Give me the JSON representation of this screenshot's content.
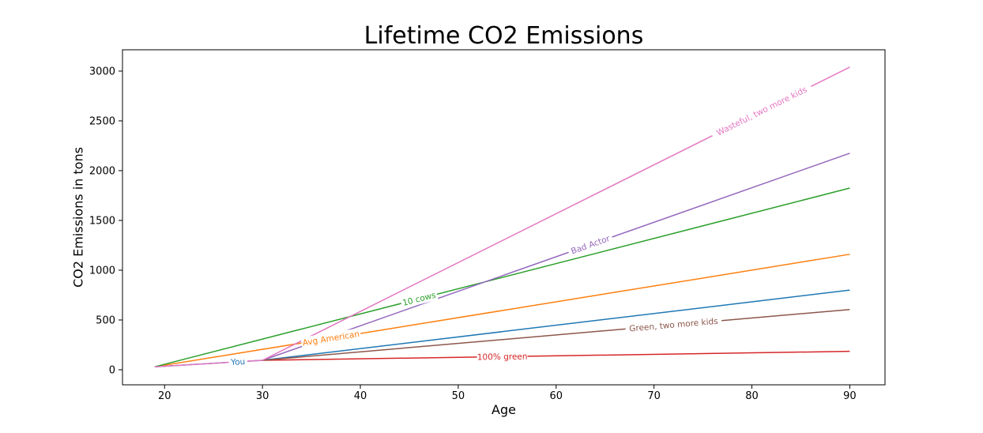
{
  "chart_data": {
    "type": "line",
    "title": "Lifetime CO2 Emissions",
    "xlabel": "Age",
    "ylabel": "CO2 Emissions in tons",
    "xlim": [
      15.7,
      93.6
    ],
    "ylim": [
      -151,
      3214
    ],
    "xticks": [
      20,
      30,
      40,
      50,
      60,
      70,
      80,
      90
    ],
    "yticks": [
      0,
      500,
      1000,
      1500,
      2000,
      2500,
      3000
    ],
    "grid": false,
    "legend": "inline-line-labels",
    "axis_color": "#000000",
    "background": "#ffffff",
    "series": [
      {
        "name": "You",
        "color": "#1f77b4",
        "points": [
          [
            19,
            30
          ],
          [
            30,
            95
          ],
          [
            90,
            800
          ]
        ],
        "label_age": 27.5
      },
      {
        "name": "Avg American",
        "color": "#ff7f0e",
        "points": [
          [
            19,
            30
          ],
          [
            90,
            1160
          ]
        ],
        "label_age": 37
      },
      {
        "name": "10 cows",
        "color": "#2ca02c",
        "points": [
          [
            19,
            30
          ],
          [
            90,
            1825
          ]
        ],
        "label_age": 46
      },
      {
        "name": "100% green",
        "color": "#d62728",
        "points": [
          [
            30,
            95
          ],
          [
            90,
            185
          ]
        ],
        "label_age": 54.5
      },
      {
        "name": "Bad Actor",
        "color": "#9467bd",
        "points": [
          [
            30,
            95
          ],
          [
            90,
            2175
          ]
        ],
        "label_age": 63.5
      },
      {
        "name": "Green, two more kids",
        "color": "#8c564b",
        "points": [
          [
            30,
            95
          ],
          [
            90,
            605
          ]
        ],
        "label_age": 72
      },
      {
        "name": "Wasteful, two more kids",
        "color": "#e377c2",
        "points": [
          [
            19,
            30
          ],
          [
            30,
            95
          ],
          [
            90,
            3040
          ]
        ],
        "label_age": 81
      }
    ]
  }
}
